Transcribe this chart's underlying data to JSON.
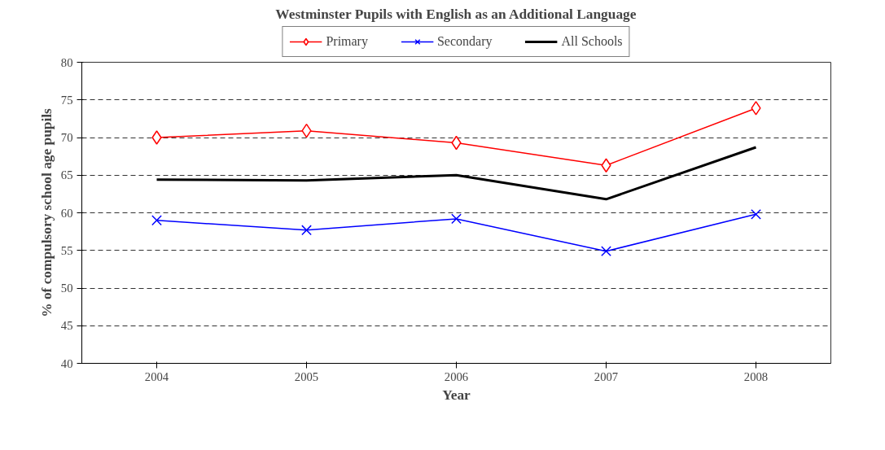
{
  "chart_data": {
    "type": "line",
    "title": "Westminster Pupils with English as an Additional Language",
    "xlabel": "Year",
    "ylabel": "% of compulsory school age pupils",
    "categories": [
      "2004",
      "2005",
      "2006",
      "2007",
      "2008"
    ],
    "series": [
      {
        "name": "Primary",
        "color": "#ff0000",
        "marker": "diamond",
        "values": [
          70,
          70.9,
          69.3,
          66.3,
          73.9
        ]
      },
      {
        "name": "Secondary",
        "color": "#0000ff",
        "marker": "cross",
        "values": [
          59.0,
          57.7,
          59.2,
          54.9,
          59.8
        ]
      },
      {
        "name": "All Schools",
        "color": "#000000",
        "marker": "none",
        "values": [
          64.4,
          64.3,
          65.0,
          61.8,
          68.7
        ]
      }
    ],
    "ylim": [
      40,
      80
    ],
    "yticks": [
      40,
      45,
      50,
      55,
      60,
      65,
      70,
      75,
      80
    ],
    "grid": "y",
    "legend": "top"
  }
}
